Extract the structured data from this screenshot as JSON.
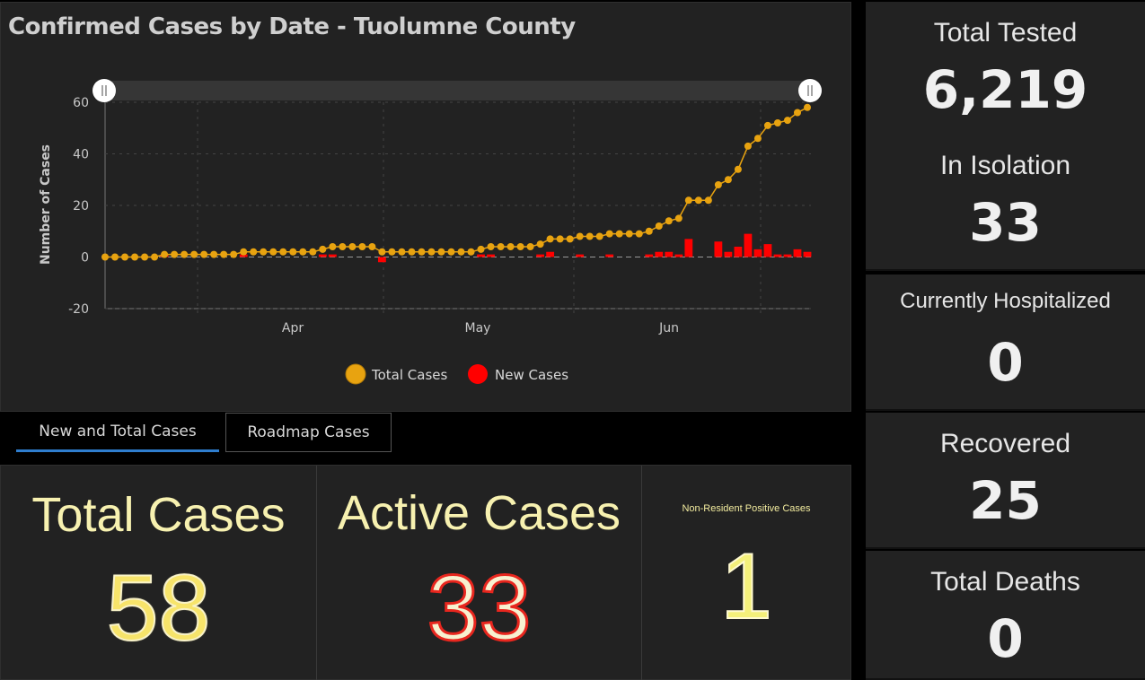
{
  "chart_panel": {
    "title": "Confirmed Cases by Date - Tuolumne County"
  },
  "chart_data": {
    "type": "line",
    "ylabel": "Number of Cases",
    "ylim": [
      -20,
      60
    ],
    "yticks": [
      -20,
      0,
      20,
      40,
      60
    ],
    "xticks": [
      "Apr",
      "May",
      "Jun"
    ],
    "legend": {
      "placement": "bottom-center"
    },
    "series": [
      {
        "name": "Total Cases",
        "color": "#e8a310",
        "type": "line",
        "values": [
          0,
          0,
          0,
          0,
          0,
          0,
          1,
          1,
          1,
          1,
          1,
          1,
          1,
          1,
          2,
          2,
          2,
          2,
          2,
          2,
          2,
          2,
          3,
          4,
          4,
          4,
          4,
          4,
          2,
          2,
          2,
          2,
          2,
          2,
          2,
          2,
          2,
          2,
          3,
          4,
          4,
          4,
          4,
          4,
          5,
          7,
          7,
          7,
          8,
          8,
          8,
          9,
          9,
          9,
          9,
          10,
          12,
          14,
          15,
          22,
          22,
          22,
          28,
          30,
          34,
          43,
          46,
          51,
          52,
          53,
          56,
          58
        ]
      },
      {
        "name": "New Cases",
        "color": "#ff0000",
        "type": "bar",
        "values": [
          0,
          0,
          0,
          0,
          0,
          0,
          1,
          0,
          0,
          0,
          0,
          0,
          0,
          0,
          1,
          0,
          0,
          0,
          0,
          0,
          0,
          0,
          1,
          1,
          0,
          0,
          0,
          0,
          -2,
          0,
          0,
          0,
          0,
          0,
          0,
          0,
          0,
          0,
          1,
          1,
          0,
          0,
          0,
          0,
          1,
          2,
          0,
          0,
          1,
          0,
          0,
          1,
          0,
          0,
          0,
          1,
          2,
          2,
          1,
          7,
          0,
          0,
          6,
          2,
          4,
          9,
          3,
          5,
          1,
          1,
          3,
          2
        ]
      }
    ]
  },
  "tabs": {
    "new_total": "New and Total Cases",
    "roadmap": "Roadmap Cases"
  },
  "stats": {
    "total_label": "Total Cases",
    "total_value": "58",
    "active_label": "Active Cases",
    "active_value": "33",
    "nonres_label": "Non-Resident Positive Cases",
    "nonres_value": "1"
  },
  "side": {
    "tested_label": "Total Tested",
    "tested_value": "6,219",
    "isolation_label": "In Isolation",
    "isolation_value": "33",
    "hospital_label": "Currently Hospitalized",
    "hospital_value": "0",
    "recovered_label": "Recovered",
    "recovered_value": "25",
    "deaths_label": "Total Deaths",
    "deaths_value": "0"
  }
}
